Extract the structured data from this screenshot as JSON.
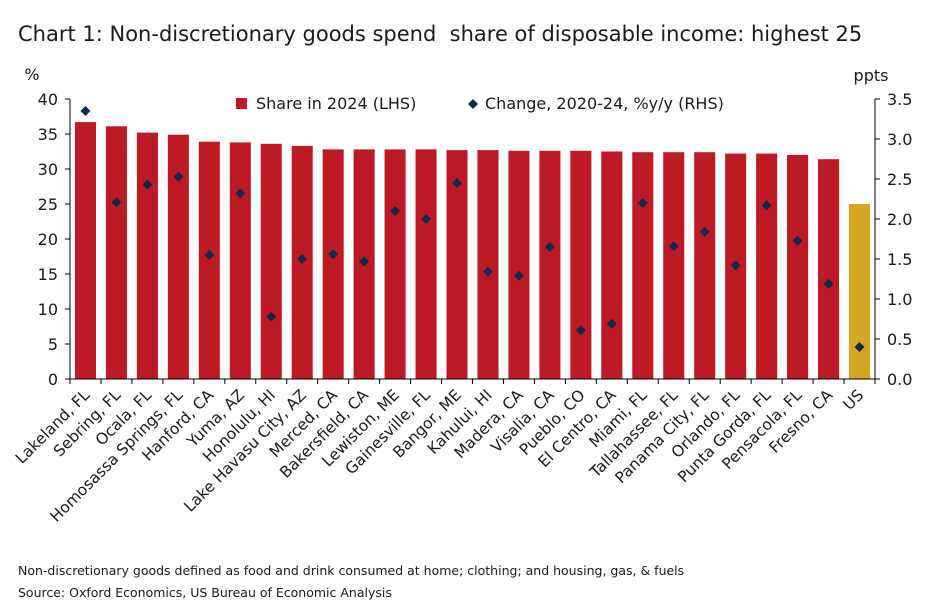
{
  "title": "Chart 1: Non-discretionary goods spend  share of disposable income: highest 25",
  "footnotes": {
    "definition": "Non-discretionary goods defined as food and drink consumed at home; clothing; and housing, gas, & fuels",
    "source": "Source: Oxford Economics, US Bureau of Economic Analysis"
  },
  "colors": {
    "bar": "#bd1a25",
    "highlight_bar": "#d4a622",
    "marker": "#0d2a4e",
    "axis": "#000000"
  },
  "chart_data": {
    "type": "bar",
    "ylabel_left": "%",
    "ylabel_right": "ppts",
    "ylim_left": [
      0,
      40
    ],
    "yticks_left": [
      "0",
      "5",
      "10",
      "15",
      "20",
      "25",
      "30",
      "35",
      "40"
    ],
    "ylim_right": [
      0,
      3.5
    ],
    "yticks_right": [
      "0.0",
      "0.5",
      "1.0",
      "1.5",
      "2.0",
      "2.5",
      "3.0",
      "3.5"
    ],
    "legend_position": "top",
    "grid": false,
    "highlight_category": "US",
    "categories": [
      "Lakeland, FL",
      "Sebring, FL",
      "Ocala, FL",
      "Homosassa Springs, FL",
      "Hanford, CA",
      "Yuma, AZ",
      "Honolulu, HI",
      "Lake Havasu City, AZ",
      "Merced, CA",
      "Bakersfield, CA",
      "Lewiston, ME",
      "Gainesville, FL",
      "Bangor, ME",
      "Kahului, HI",
      "Madera, CA",
      "Visalia, CA",
      "Pueblo, CO",
      "El Centro, CA",
      "Miami, FL",
      "Tallahassee, FL",
      "Panama City, FL",
      "Orlando, FL",
      "Punta Gorda, FL",
      "Pensacola, FL",
      "Fresno, CA",
      "US"
    ],
    "series": [
      {
        "name": "Share in 2024 (LHS)",
        "type": "bar",
        "axis": "left",
        "values": [
          36.7,
          36.1,
          35.2,
          34.9,
          33.9,
          33.8,
          33.6,
          33.3,
          32.8,
          32.8,
          32.8,
          32.8,
          32.7,
          32.7,
          32.6,
          32.6,
          32.6,
          32.5,
          32.4,
          32.4,
          32.4,
          32.2,
          32.2,
          32.0,
          31.4,
          25.0
        ]
      },
      {
        "name": "Change, 2020-24, %y/y (RHS)",
        "type": "scatter",
        "axis": "right",
        "values": [
          3.35,
          2.21,
          2.43,
          2.53,
          1.55,
          2.32,
          0.78,
          1.5,
          1.56,
          1.47,
          2.1,
          2.0,
          2.45,
          1.34,
          1.29,
          1.65,
          0.61,
          0.69,
          2.2,
          1.66,
          1.84,
          1.42,
          2.17,
          1.73,
          1.19,
          0.4
        ]
      }
    ]
  }
}
